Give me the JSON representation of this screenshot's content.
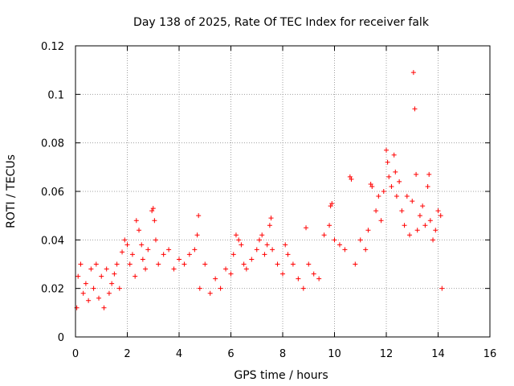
{
  "chart_data": {
    "type": "scatter",
    "title": "Day 138 of 2025, Rate Of TEC Index for receiver falk",
    "xlabel": "GPS time / hours",
    "ylabel": "ROTI / TECUs",
    "xlim": [
      0,
      16
    ],
    "ylim": [
      0,
      0.12
    ],
    "x_ticks": [
      0,
      2,
      4,
      6,
      8,
      10,
      12,
      14,
      16
    ],
    "x_tick_labels": [
      "0",
      "2",
      "4",
      "6",
      "8",
      "10",
      "12",
      "14",
      "16"
    ],
    "y_ticks": [
      0,
      0.02,
      0.04,
      0.06,
      0.08,
      0.1,
      0.12
    ],
    "y_tick_labels": [
      "0",
      "0.02",
      "0.04",
      "0.06",
      "0.08",
      "0.1",
      "0.12"
    ],
    "grid": true,
    "marker": "+",
    "color": "#ff0000",
    "series": [
      {
        "name": "ROTI",
        "points": [
          [
            0.05,
            0.012
          ],
          [
            0.1,
            0.025
          ],
          [
            0.2,
            0.03
          ],
          [
            0.3,
            0.018
          ],
          [
            0.4,
            0.022
          ],
          [
            0.5,
            0.015
          ],
          [
            0.6,
            0.028
          ],
          [
            0.7,
            0.02
          ],
          [
            0.8,
            0.03
          ],
          [
            0.9,
            0.016
          ],
          [
            1.0,
            0.025
          ],
          [
            1.1,
            0.012
          ],
          [
            1.2,
            0.028
          ],
          [
            1.3,
            0.018
          ],
          [
            1.4,
            0.022
          ],
          [
            1.5,
            0.026
          ],
          [
            1.6,
            0.03
          ],
          [
            1.7,
            0.02
          ],
          [
            1.8,
            0.035
          ],
          [
            1.9,
            0.04
          ],
          [
            2.0,
            0.038
          ],
          [
            2.1,
            0.03
          ],
          [
            2.2,
            0.034
          ],
          [
            2.3,
            0.025
          ],
          [
            2.35,
            0.048
          ],
          [
            2.45,
            0.044
          ],
          [
            2.55,
            0.038
          ],
          [
            2.6,
            0.032
          ],
          [
            2.7,
            0.028
          ],
          [
            2.8,
            0.036
          ],
          [
            2.95,
            0.052
          ],
          [
            3.0,
            0.053
          ],
          [
            3.05,
            0.048
          ],
          [
            3.1,
            0.04
          ],
          [
            3.2,
            0.03
          ],
          [
            3.4,
            0.034
          ],
          [
            3.6,
            0.036
          ],
          [
            3.8,
            0.028
          ],
          [
            4.0,
            0.032
          ],
          [
            4.2,
            0.03
          ],
          [
            4.4,
            0.034
          ],
          [
            4.6,
            0.036
          ],
          [
            4.7,
            0.042
          ],
          [
            4.75,
            0.05
          ],
          [
            4.8,
            0.02
          ],
          [
            5.0,
            0.03
          ],
          [
            5.2,
            0.018
          ],
          [
            5.4,
            0.024
          ],
          [
            5.6,
            0.02
          ],
          [
            5.8,
            0.028
          ],
          [
            6.0,
            0.026
          ],
          [
            6.1,
            0.034
          ],
          [
            6.2,
            0.042
          ],
          [
            6.3,
            0.04
          ],
          [
            6.4,
            0.038
          ],
          [
            6.5,
            0.03
          ],
          [
            6.6,
            0.028
          ],
          [
            6.8,
            0.032
          ],
          [
            7.0,
            0.036
          ],
          [
            7.1,
            0.04
          ],
          [
            7.2,
            0.042
          ],
          [
            7.3,
            0.034
          ],
          [
            7.4,
            0.038
          ],
          [
            7.5,
            0.046
          ],
          [
            7.55,
            0.049
          ],
          [
            7.6,
            0.036
          ],
          [
            7.8,
            0.03
          ],
          [
            8.0,
            0.026
          ],
          [
            8.1,
            0.038
          ],
          [
            8.2,
            0.034
          ],
          [
            8.4,
            0.03
          ],
          [
            8.6,
            0.024
          ],
          [
            8.8,
            0.02
          ],
          [
            8.9,
            0.045
          ],
          [
            9.0,
            0.03
          ],
          [
            9.2,
            0.026
          ],
          [
            9.4,
            0.024
          ],
          [
            9.6,
            0.042
          ],
          [
            9.8,
            0.046
          ],
          [
            9.85,
            0.054
          ],
          [
            9.9,
            0.055
          ],
          [
            10.0,
            0.04
          ],
          [
            10.2,
            0.038
          ],
          [
            10.4,
            0.036
          ],
          [
            10.6,
            0.066
          ],
          [
            10.65,
            0.065
          ],
          [
            10.8,
            0.03
          ],
          [
            11.0,
            0.04
          ],
          [
            11.2,
            0.036
          ],
          [
            11.3,
            0.044
          ],
          [
            11.4,
            0.063
          ],
          [
            11.45,
            0.062
          ],
          [
            11.6,
            0.052
          ],
          [
            11.7,
            0.058
          ],
          [
            11.8,
            0.048
          ],
          [
            11.9,
            0.06
          ],
          [
            12.0,
            0.077
          ],
          [
            12.05,
            0.072
          ],
          [
            12.1,
            0.066
          ],
          [
            12.2,
            0.062
          ],
          [
            12.3,
            0.075
          ],
          [
            12.35,
            0.068
          ],
          [
            12.4,
            0.058
          ],
          [
            12.5,
            0.064
          ],
          [
            12.6,
            0.052
          ],
          [
            12.7,
            0.046
          ],
          [
            12.8,
            0.058
          ],
          [
            12.9,
            0.042
          ],
          [
            13.0,
            0.056
          ],
          [
            13.05,
            0.109
          ],
          [
            13.1,
            0.094
          ],
          [
            13.15,
            0.067
          ],
          [
            13.2,
            0.044
          ],
          [
            13.3,
            0.05
          ],
          [
            13.4,
            0.054
          ],
          [
            13.5,
            0.046
          ],
          [
            13.6,
            0.062
          ],
          [
            13.65,
            0.067
          ],
          [
            13.7,
            0.048
          ],
          [
            13.8,
            0.04
          ],
          [
            13.9,
            0.044
          ],
          [
            14.0,
            0.052
          ],
          [
            14.1,
            0.05
          ],
          [
            14.15,
            0.02
          ]
        ]
      }
    ]
  }
}
